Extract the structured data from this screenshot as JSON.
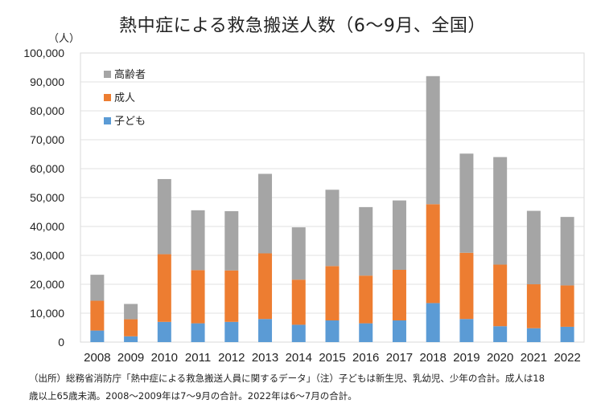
{
  "chart_data": {
    "type": "bar",
    "stacked": true,
    "title": "熱中症による救急搬送人数（6～9月、全国）",
    "ylabel": "（人）",
    "xlabel": "",
    "ylim": [
      0,
      100000
    ],
    "yticks": [
      0,
      10000,
      20000,
      30000,
      40000,
      50000,
      60000,
      70000,
      80000,
      90000,
      100000
    ],
    "ytick_labels": [
      "0",
      "10,000",
      "20,000",
      "30,000",
      "40,000",
      "50,000",
      "60,000",
      "70,000",
      "80,000",
      "90,000",
      "100,000"
    ],
    "grid": true,
    "legend_position": "top-left",
    "categories": [
      "2008",
      "2009",
      "2010",
      "2011",
      "2012",
      "2013",
      "2014",
      "2015",
      "2016",
      "2017",
      "2018",
      "2019",
      "2020",
      "2021",
      "2022"
    ],
    "series": [
      {
        "name": "子ども",
        "color": "#5b9bd5",
        "values": [
          4000,
          2000,
          7000,
          6500,
          7000,
          8000,
          6000,
          7500,
          6500,
          7500,
          13500,
          8000,
          5500,
          4800,
          5300
        ]
      },
      {
        "name": "成人",
        "color": "#ed7d31",
        "values": [
          10300,
          5900,
          23400,
          18400,
          17800,
          22700,
          15600,
          18800,
          16500,
          17500,
          34200,
          22900,
          21300,
          15200,
          14300
        ]
      },
      {
        "name": "高齢者",
        "color": "#a5a5a5",
        "values": [
          9000,
          5300,
          26000,
          20700,
          20500,
          27500,
          18100,
          26400,
          23700,
          24000,
          44300,
          34300,
          37200,
          25400,
          23700
        ]
      }
    ],
    "footnote": [
      "（出所）総務省消防庁「熱中症による救急搬送人員に関するデータ」（注）子どもは新生児、乳幼児、少年の合計。成人は18",
      "歳以上65歳未満。2008～2009年は7～9月の合計。2022年は6～7月の合計。"
    ]
  }
}
